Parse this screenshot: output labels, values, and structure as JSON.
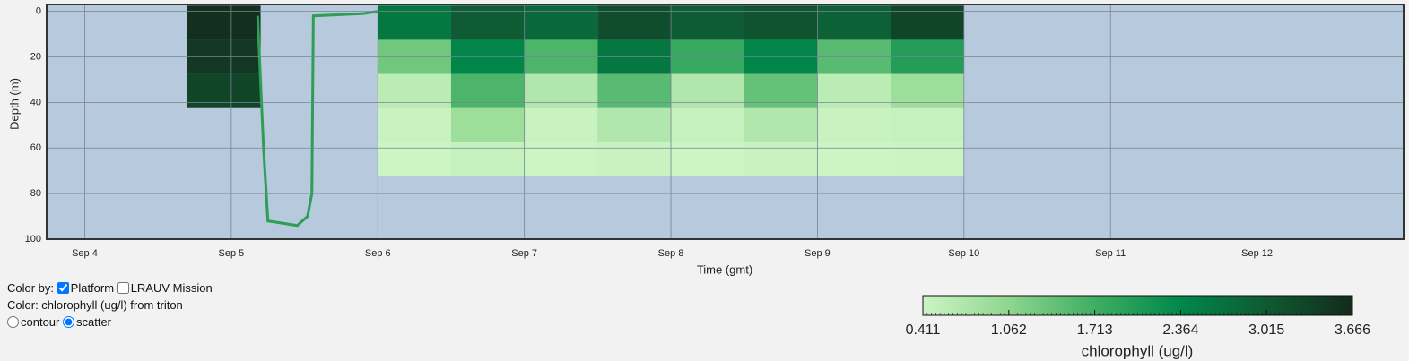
{
  "controls": {
    "color_by": "Color by:",
    "options": [
      {
        "label": "Platform",
        "checked": true
      },
      {
        "label": "LRAUV Mission",
        "checked": false
      }
    ],
    "color_line": "Color: chlorophyll (ug/l) from triton",
    "plot_types": [
      {
        "label": "contour",
        "selected": false
      },
      {
        "label": "scatter",
        "selected": true
      }
    ]
  },
  "chart_data": {
    "type": "scatter",
    "xlabel": "Time (gmt)",
    "ylabel": "Depth (m)",
    "xlim": [
      3.74,
      13.0
    ],
    "ylim": [
      100,
      -3
    ],
    "xticks": [
      {
        "value": 4,
        "label": "Sep 4"
      },
      {
        "value": 5,
        "label": "Sep 5"
      },
      {
        "value": 6,
        "label": "Sep 6"
      },
      {
        "value": 7,
        "label": "Sep 7"
      },
      {
        "value": 8,
        "label": "Sep 8"
      },
      {
        "value": 9,
        "label": "Sep 9"
      },
      {
        "value": 10,
        "label": "Sep 10"
      },
      {
        "value": 11,
        "label": "Sep 11"
      },
      {
        "value": 12,
        "label": "Sep 12"
      }
    ],
    "yticks": [
      0,
      20,
      40,
      60,
      80,
      100
    ],
    "grid": true,
    "background": "#b6c9dd",
    "x": [
      4.95,
      4.95,
      4.95,
      6.25,
      6.25,
      6.25,
      6.25,
      6.25,
      6.75,
      6.75,
      6.75,
      6.75,
      6.75,
      7.25,
      7.25,
      7.25,
      7.25,
      7.25,
      7.75,
      7.75,
      7.75,
      7.75,
      7.75,
      8.25,
      8.25,
      8.25,
      8.25,
      8.25,
      8.75,
      8.75,
      8.75,
      8.75,
      8.75,
      9.25,
      9.25,
      9.25,
      9.25,
      9.25,
      9.75,
      9.75,
      9.75,
      9.75,
      9.75
    ],
    "y": [
      5,
      20,
      35,
      5,
      20,
      35,
      50,
      65,
      5,
      20,
      35,
      50,
      65,
      5,
      20,
      35,
      50,
      65,
      5,
      20,
      35,
      50,
      65,
      5,
      20,
      35,
      50,
      65,
      5,
      20,
      35,
      50,
      65,
      5,
      20,
      35,
      50,
      65,
      5,
      20,
      35,
      50,
      65
    ],
    "values": [
      3.6,
      3.5,
      3.3,
      2.6,
      1.3,
      0.6,
      0.45,
      0.42,
      3.0,
      2.4,
      1.6,
      0.9,
      0.5,
      2.8,
      1.6,
      0.7,
      0.45,
      0.42,
      3.2,
      2.6,
      1.5,
      0.7,
      0.45,
      3.0,
      1.8,
      0.7,
      0.5,
      0.42,
      3.1,
      2.4,
      1.4,
      0.7,
      0.45,
      2.9,
      1.5,
      0.6,
      0.45,
      0.42,
      3.3,
      2.0,
      0.9,
      0.5,
      0.43
    ],
    "track": {
      "color": "#2e9e55",
      "x": [
        5.18,
        5.22,
        5.25,
        5.45,
        5.52,
        5.55,
        5.56,
        5.9,
        6.0
      ],
      "y": [
        2,
        60,
        92,
        94,
        90,
        80,
        2,
        1,
        0
      ]
    },
    "colorbar": {
      "title": "chlorophyll (ug/l)",
      "lim": [
        0.411,
        3.666
      ],
      "ticks": [
        0.411,
        1.062,
        1.713,
        2.364,
        3.015,
        3.666
      ],
      "colormap": [
        "#ccf5c4",
        "#8fd68e",
        "#3fae63",
        "#00884a",
        "#0f5a32",
        "#132b1c"
      ]
    }
  }
}
